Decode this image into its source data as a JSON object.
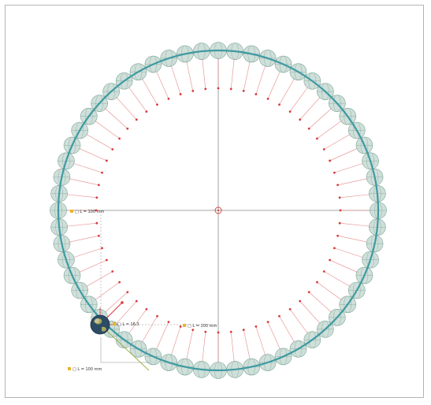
{
  "diagram": {
    "globe_count": 60,
    "labels": {
      "left_box": "□ L = 100 mm",
      "center_box": "□ L = 100 mm",
      "bottom_box": "□ L = 100 mm",
      "earth_tag": "□ L = 16.3"
    },
    "colors": {
      "orbit": "#3f9aa2",
      "globe_fill": "#c7d9d2",
      "globe_edge": "#7fa69a",
      "vector": "#e58a8a",
      "vector_dot": "#d83a3a",
      "axis": "#8a8a8a",
      "center_marker": "#d84a4a",
      "earth_body": "#2c4c66",
      "earth_land": "#a8a65a",
      "tangent": "#9cb14a",
      "label_box": "#e8b52a"
    }
  }
}
